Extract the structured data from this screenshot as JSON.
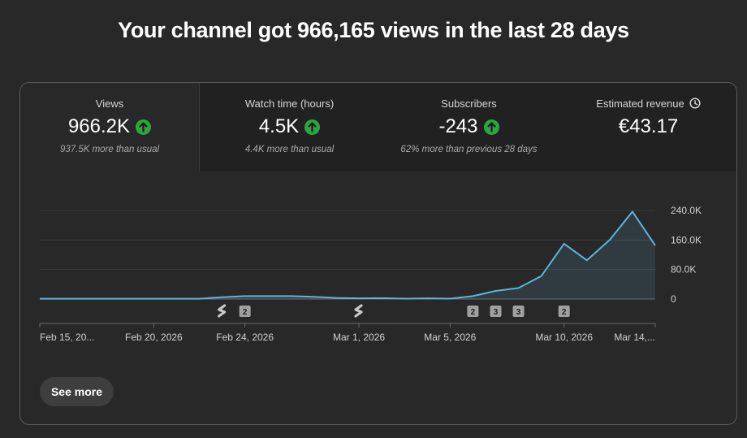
{
  "headline": "Your channel got 966,165 views in the last 28 days",
  "metrics": [
    {
      "label": "Views",
      "value": "966.2K",
      "trend": "up",
      "sub": "937.5K more than usual"
    },
    {
      "label": "Watch time (hours)",
      "value": "4.5K",
      "trend": "up",
      "sub": "4.4K more than usual"
    },
    {
      "label": "Subscribers",
      "value": "-243",
      "trend": "up",
      "sub": "62% more than previous 28 days"
    },
    {
      "label": "Estimated revenue",
      "value": "€43.17",
      "trend": "none",
      "sub": "",
      "icon": "clock-icon"
    }
  ],
  "see_more_label": "See more",
  "colors": {
    "line": "#5fb3d9",
    "up": "#2ba640",
    "grid": "#3d3d3d"
  },
  "chart_data": {
    "type": "area",
    "x_tick_labels": [
      "Feb 15, 20...",
      "Feb 20, 2026",
      "Feb 24, 2026",
      "Mar 1, 2026",
      "Mar 5, 2026",
      "Mar 10, 2026",
      "Mar 14,..."
    ],
    "y_tick_labels": [
      "240.0K",
      "160.0K",
      "80.0K",
      "0"
    ],
    "ylim": [
      0,
      240000
    ],
    "x": [
      "Feb 15",
      "Feb 16",
      "Feb 17",
      "Feb 18",
      "Feb 19",
      "Feb 20",
      "Feb 21",
      "Feb 22",
      "Feb 23",
      "Feb 24",
      "Feb 25",
      "Feb 26",
      "Feb 27",
      "Feb 28",
      "Mar 1",
      "Mar 2",
      "Mar 3",
      "Mar 4",
      "Mar 5",
      "Mar 6",
      "Mar 7",
      "Mar 8",
      "Mar 9",
      "Mar 10",
      "Mar 11",
      "Mar 12",
      "Mar 13",
      "Mar 14"
    ],
    "values": [
      800,
      800,
      800,
      800,
      800,
      800,
      800,
      800,
      5000,
      8000,
      8000,
      8000,
      6000,
      3000,
      2000,
      2500,
      1000,
      2000,
      1000,
      8000,
      22000,
      30000,
      62000,
      150000,
      105000,
      160000,
      237000,
      145000
    ],
    "markers": [
      {
        "x": "Feb 23",
        "kind": "shorts"
      },
      {
        "x": "Feb 24",
        "kind": "badge",
        "label": "2"
      },
      {
        "x": "Mar 1",
        "kind": "shorts"
      },
      {
        "x": "Mar 6",
        "kind": "badge",
        "label": "2"
      },
      {
        "x": "Mar 7",
        "kind": "badge",
        "label": "3"
      },
      {
        "x": "Mar 8",
        "kind": "badge",
        "label": "3"
      },
      {
        "x": "Mar 10",
        "kind": "badge",
        "label": "2"
      }
    ]
  }
}
